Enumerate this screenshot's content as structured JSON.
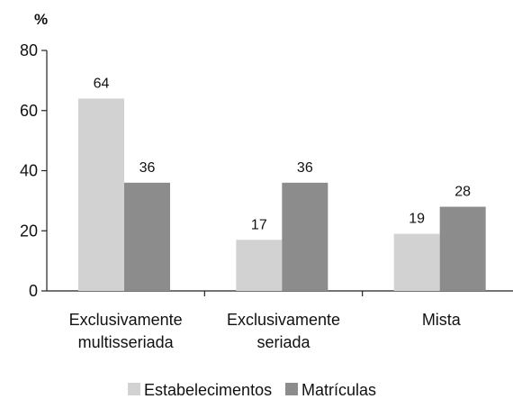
{
  "chart_data": {
    "type": "bar",
    "y_unit_label": "%",
    "categories": [
      [
        "Exclusivamente",
        "multisseriada"
      ],
      [
        "Exclusivamente",
        "seriada"
      ],
      [
        "Mista"
      ]
    ],
    "series": [
      {
        "name": "Estabelecimentos",
        "values": [
          64,
          17,
          19
        ],
        "color": "#d2d2d2"
      },
      {
        "name": "Matrículas",
        "values": [
          36,
          36,
          28
        ],
        "color": "#8c8c8c"
      }
    ],
    "ylim": [
      0,
      80
    ],
    "yticks": [
      0,
      20,
      40,
      60,
      80
    ],
    "grid": false,
    "legend_position": "bottom"
  }
}
